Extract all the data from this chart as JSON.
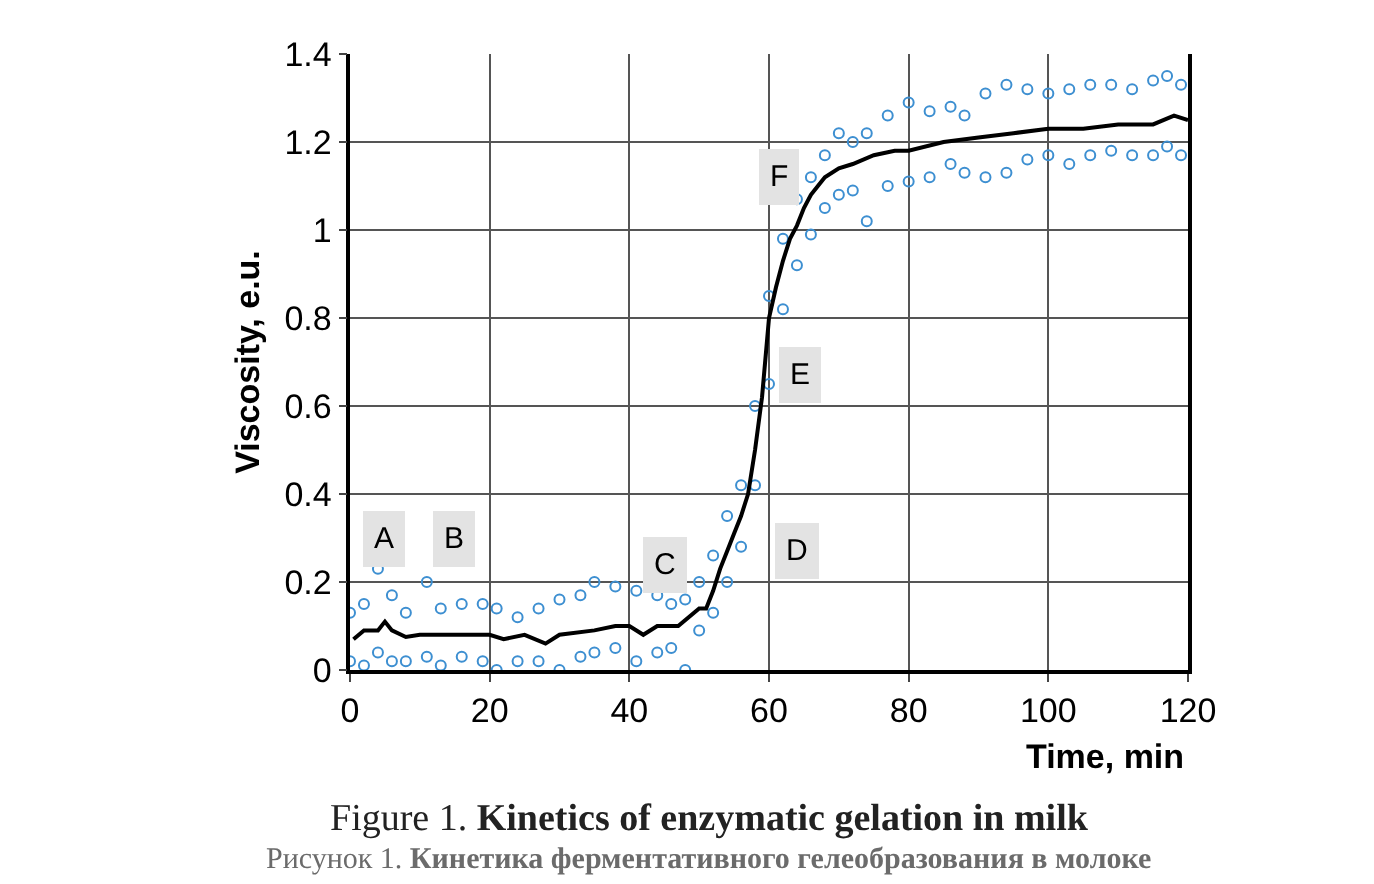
{
  "chart_data": {
    "type": "scatter",
    "title": "Figure 1. Kinetics of enzymatic gelation in milk",
    "subtitle": "Рисунок 1. Кинетика ферментативного гелеобразования в молоке",
    "xlabel": "Time, min",
    "ylabel": "Viscosity, e.u.",
    "xlim": [
      0,
      120
    ],
    "xticks": [
      0,
      20,
      40,
      60,
      80,
      100,
      120
    ],
    "ylim": [
      0,
      1.4
    ],
    "yticks": [
      0,
      0.2,
      0.4,
      0.6,
      0.8,
      1,
      1.2,
      1.4
    ],
    "grid": true,
    "series": [
      {
        "marker": "circle",
        "color": "#3d8fd1",
        "x": [
          0,
          0,
          2,
          2,
          4,
          4,
          6,
          6,
          8,
          8,
          11,
          11,
          13,
          13,
          16,
          16,
          19,
          19,
          21,
          21,
          24,
          24,
          27,
          27,
          30,
          30,
          33,
          33,
          35,
          35,
          38,
          38,
          41,
          41,
          44,
          44,
          46,
          46,
          48,
          48,
          50,
          50,
          52,
          52,
          54,
          54,
          56,
          56,
          58,
          58,
          60,
          60,
          62,
          62,
          64,
          64,
          66,
          66,
          68,
          68,
          70,
          70,
          72,
          72,
          74,
          74,
          77,
          77,
          80,
          80,
          83,
          83,
          86,
          86,
          88,
          88,
          91,
          91,
          94,
          94,
          97,
          97,
          100,
          100,
          103,
          103,
          106,
          106,
          109,
          109,
          112,
          112,
          115,
          115,
          117,
          117,
          119,
          119
        ],
        "values": [
          0.02,
          0.13,
          0.15,
          0.01,
          0.23,
          0.04,
          0.17,
          0.02,
          0.13,
          0.02,
          0.2,
          0.03,
          0.14,
          0.01,
          0.15,
          0.03,
          0.15,
          0.02,
          0.14,
          0,
          0.12,
          0.02,
          0.14,
          0.02,
          0.16,
          0,
          0.17,
          0.03,
          0.2,
          0.04,
          0.19,
          0.05,
          0.18,
          0.02,
          0.17,
          0.04,
          0.15,
          0.05,
          0.16,
          0,
          0.2,
          0.09,
          0.26,
          0.13,
          0.35,
          0.2,
          0.42,
          0.28,
          0.6,
          0.42,
          0.85,
          0.65,
          0.98,
          0.82,
          1.07,
          0.92,
          1.12,
          0.99,
          1.17,
          1.05,
          1.22,
          1.08,
          1.2,
          1.09,
          1.22,
          1.02,
          1.26,
          1.1,
          1.29,
          1.11,
          1.27,
          1.12,
          1.28,
          1.15,
          1.26,
          1.13,
          1.31,
          1.12,
          1.33,
          1.13,
          1.32,
          1.16,
          1.31,
          1.17,
          1.32,
          1.15,
          1.33,
          1.17,
          1.33,
          1.18,
          1.32,
          1.17,
          1.34,
          1.17,
          1.35,
          1.19,
          1.33,
          1.17
        ]
      },
      {
        "type": "line",
        "marker": "none",
        "line_style": "solid",
        "color": "#000000",
        "x": [
          0.5,
          2,
          4,
          5,
          6,
          8,
          10,
          15,
          20,
          22,
          25,
          28,
          30,
          35,
          38,
          40,
          42,
          44,
          47,
          50,
          51,
          52,
          53,
          54,
          55,
          56,
          57,
          58,
          59,
          60,
          61,
          62,
          63,
          64,
          65,
          66,
          67,
          68,
          70,
          72,
          75,
          78,
          80,
          85,
          90,
          95,
          100,
          105,
          110,
          115,
          118,
          120
        ],
        "values": [
          0.07,
          0.09,
          0.09,
          0.11,
          0.09,
          0.075,
          0.08,
          0.08,
          0.08,
          0.07,
          0.08,
          0.06,
          0.08,
          0.09,
          0.1,
          0.1,
          0.08,
          0.1,
          0.1,
          0.14,
          0.14,
          0.18,
          0.23,
          0.27,
          0.31,
          0.35,
          0.4,
          0.5,
          0.62,
          0.8,
          0.87,
          0.93,
          0.98,
          1.01,
          1.05,
          1.08,
          1.1,
          1.12,
          1.14,
          1.15,
          1.17,
          1.18,
          1.18,
          1.2,
          1.21,
          1.22,
          1.23,
          1.23,
          1.24,
          1.24,
          1.26,
          1.25
        ]
      }
    ],
    "annotations": [
      {
        "text": "A",
        "x": 5,
        "y": 0.3
      },
      {
        "text": "B",
        "x": 15,
        "y": 0.3
      },
      {
        "text": "C",
        "x": 45,
        "y": 0.24
      },
      {
        "text": "D",
        "x": 64,
        "y": 0.27
      },
      {
        "text": "E",
        "x": 64.5,
        "y": 0.67
      },
      {
        "text": "F",
        "x": 61.5,
        "y": 1.12
      }
    ]
  }
}
